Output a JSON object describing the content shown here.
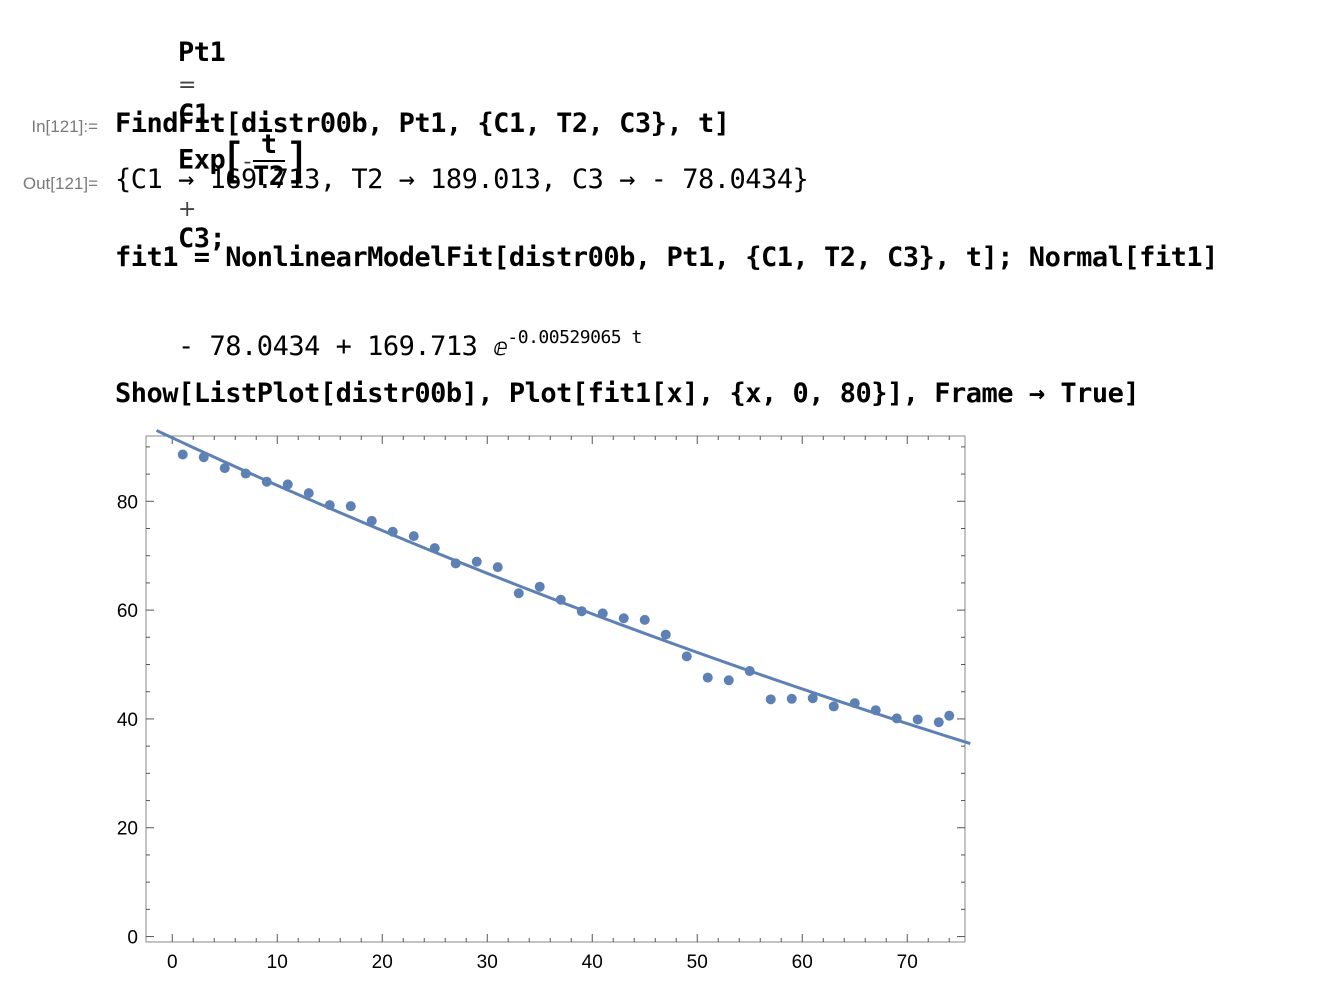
{
  "cells": {
    "def": {
      "lhs": "Pt1",
      "eq": "=",
      "c1": "C1",
      "exp": "Exp",
      "minus": "-",
      "num": "t",
      "den": "T2",
      "plus": "+",
      "rest": "C3;"
    },
    "in121": {
      "label": "In[121]:=",
      "code": "FindFit[distr00b, Pt1, {C1, T2, C3}, t]"
    },
    "out121": {
      "label": "Out[121]=",
      "text": "{C1 → 169.713, T2 → 189.013, C3 → - 78.0434}"
    },
    "fit": {
      "code": "fit1 = NonlinearModelFit[distr00b, Pt1, {C1, T2, C3}, t]; Normal[fit1]"
    },
    "fitout": {
      "base": "- 78.0434 + 169.713 ",
      "e": "ⅇ",
      "exponent": "-0.00529065 t"
    },
    "show": {
      "code": "Show[ListPlot[distr00b], Plot[fit1[x], {x, 0, 80}], Frame → True]"
    }
  },
  "chart_data": {
    "type": "scatter",
    "frame": true,
    "color": "#5e81b5",
    "xlim": [
      -2.5,
      75.5
    ],
    "ylim": [
      -1,
      92
    ],
    "xticks": [
      0,
      10,
      20,
      30,
      40,
      50,
      60,
      70
    ],
    "yticks": [
      0,
      20,
      40,
      60,
      80
    ],
    "points": [
      [
        1,
        88.6
      ],
      [
        3,
        88.1
      ],
      [
        5,
        86.1
      ],
      [
        7,
        85.1
      ],
      [
        9,
        83.6
      ],
      [
        11,
        83.1
      ],
      [
        13,
        81.5
      ],
      [
        15,
        79.3
      ],
      [
        17,
        79.1
      ],
      [
        19,
        76.4
      ],
      [
        21,
        74.4
      ],
      [
        23,
        73.6
      ],
      [
        25,
        71.4
      ],
      [
        27,
        68.6
      ],
      [
        29,
        68.9
      ],
      [
        31,
        67.9
      ],
      [
        33,
        63.1
      ],
      [
        35,
        64.3
      ],
      [
        37,
        61.9
      ],
      [
        39,
        59.8
      ],
      [
        41,
        59.4
      ],
      [
        43,
        58.5
      ],
      [
        45,
        58.2
      ],
      [
        47,
        55.5
      ],
      [
        49,
        51.5
      ],
      [
        51,
        47.6
      ],
      [
        53,
        47.1
      ],
      [
        55,
        48.8
      ],
      [
        57,
        43.6
      ],
      [
        59,
        43.7
      ],
      [
        61,
        43.8
      ],
      [
        63,
        42.3
      ],
      [
        65,
        42.9
      ],
      [
        67,
        41.6
      ],
      [
        69,
        40.1
      ],
      [
        71,
        39.9
      ],
      [
        73,
        39.4
      ],
      [
        74,
        40.6
      ]
    ],
    "fit": {
      "C1": 169.713,
      "k": 0.00529065,
      "C3": -78.0434,
      "xrange": [
        -1.5,
        76
      ]
    }
  }
}
